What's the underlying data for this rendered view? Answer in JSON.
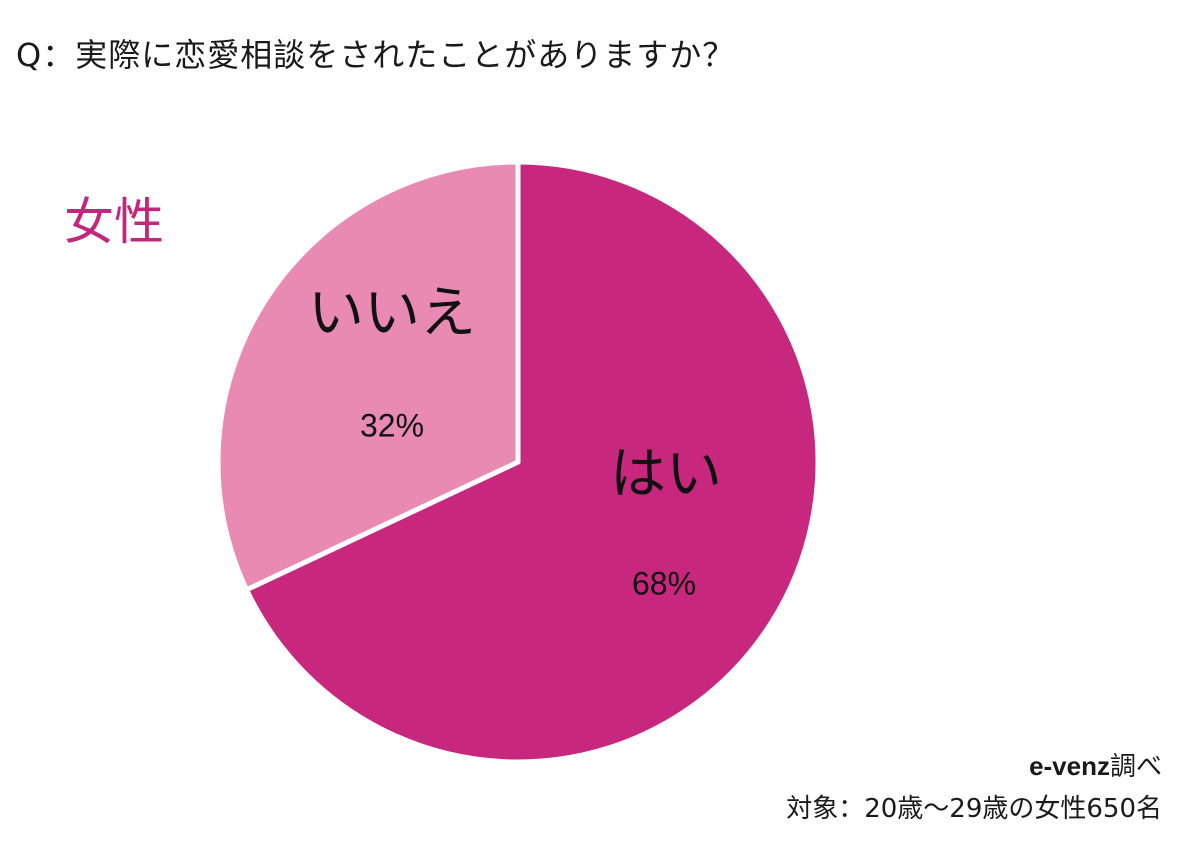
{
  "question": "Q：実際に恋愛相談をされたことがありますか？",
  "group_label": "女性",
  "source": {
    "brand": "e-venz",
    "suffix": "調べ"
  },
  "target": "対象：20歳〜29歳の女性650名",
  "colors": {
    "yes": "#c7277d",
    "no": "#e98ab3",
    "accent": "#c2277c",
    "separator": "#ffffff"
  },
  "chart_data": {
    "type": "pie",
    "title": "",
    "start_angle_deg": 0,
    "direction": "clockwise",
    "slices": [
      {
        "label": "はい",
        "value": 68,
        "value_label": "68%",
        "color": "#c7277d"
      },
      {
        "label": "いいえ",
        "value": 32,
        "value_label": "32%",
        "color": "#e98ab3"
      }
    ]
  }
}
